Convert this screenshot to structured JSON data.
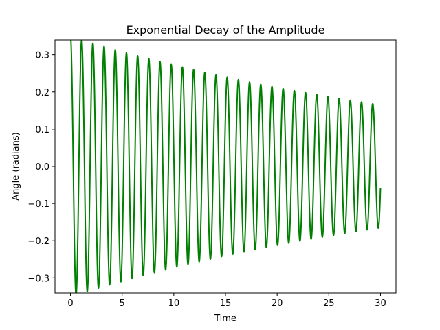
{
  "chart_data": {
    "type": "line",
    "title": "Exponential Decay of the Amplitude",
    "xlabel": "Time",
    "ylabel": "Angle (radians)",
    "xlim": [
      -1.5,
      31.5
    ],
    "ylim": [
      -0.34,
      0.34
    ],
    "x_ticks": [
      0,
      5,
      10,
      15,
      20,
      25,
      30
    ],
    "y_ticks": [
      -0.3,
      -0.2,
      -0.1,
      0.0,
      0.1,
      0.2,
      0.3
    ],
    "x_tick_labels": [
      "0",
      "5",
      "10",
      "15",
      "20",
      "25",
      "30"
    ],
    "y_tick_labels": [
      "−0.3",
      "−0.2",
      "−0.1",
      "0.0",
      "0.1",
      "0.2",
      "0.3"
    ],
    "grid": false,
    "series": [
      {
        "color": "#008000",
        "x_range": [
          0,
          30
        ],
        "curve": "damped cosine",
        "initial_amplitude": 0.35,
        "decay_rate": 0.025,
        "angular_frequency": 5.8,
        "cycles": 28
      }
    ]
  }
}
